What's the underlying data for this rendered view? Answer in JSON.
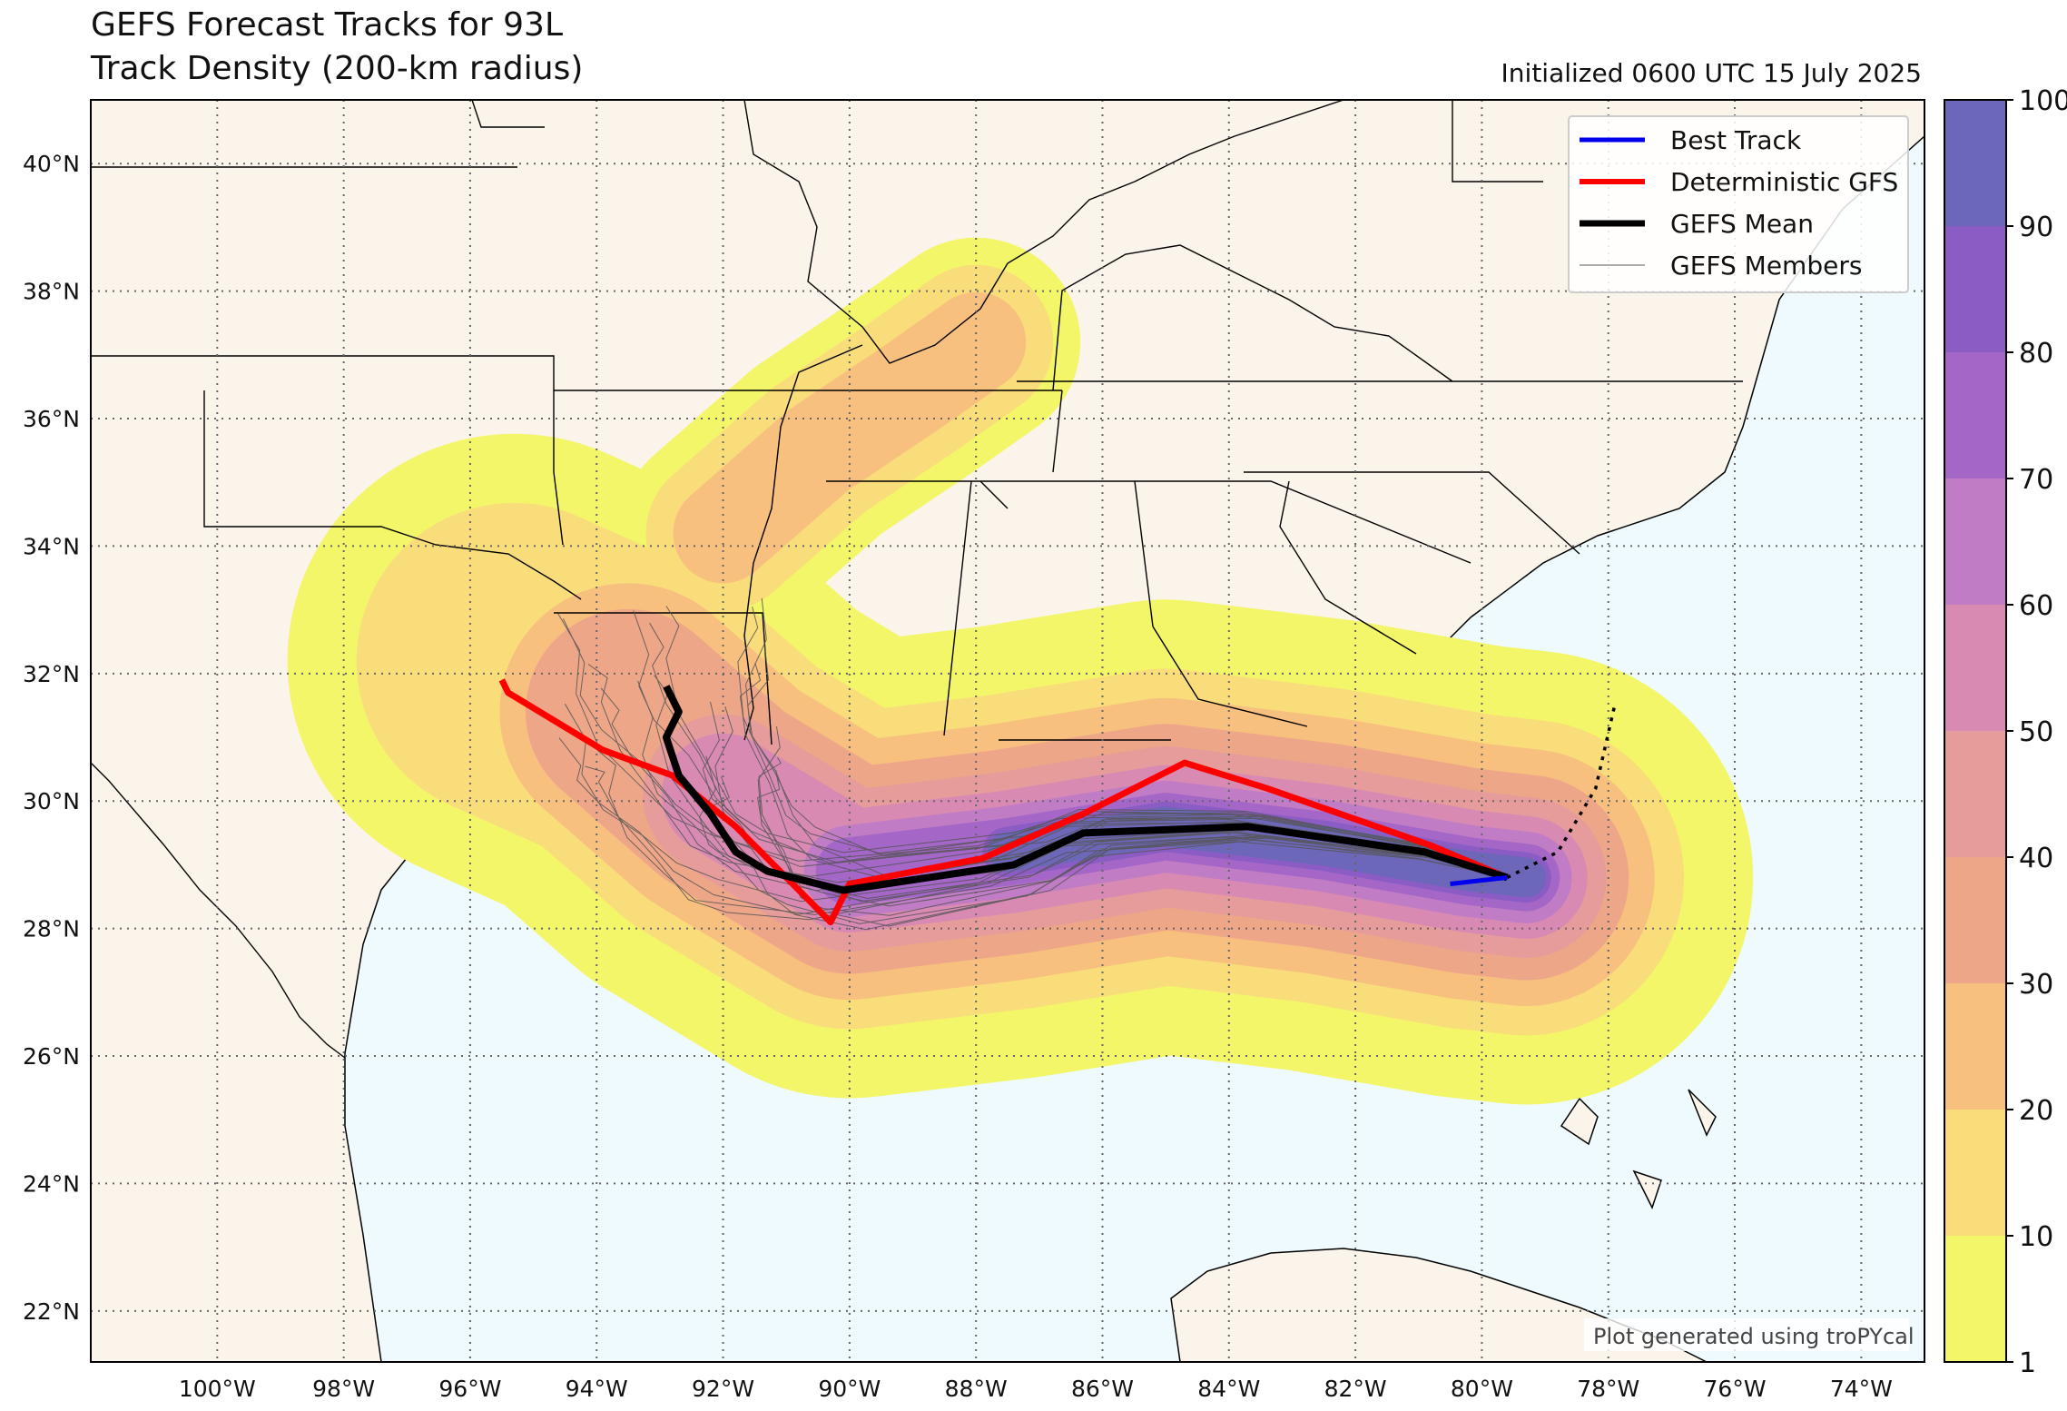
{
  "title_line1": "GEFS Forecast Tracks for 93L",
  "title_line2": "Track Density (200-km radius)",
  "initialized": "Initialized 0600 UTC 15 July 2025",
  "credit": "Plot generated using troPYcal",
  "colors": {
    "land": "#faf4ea",
    "ocean": "#eefafd",
    "best_track": "#0000ee",
    "deterministic_gfs": "#ff0000",
    "gefs_mean": "#000000",
    "gefs_members": "#333333"
  },
  "legend": [
    {
      "label": "Best Track",
      "color": "#0000ee",
      "width": 5
    },
    {
      "label": "Deterministic GFS",
      "color": "#ff0000",
      "width": 6
    },
    {
      "label": "GEFS Mean",
      "color": "#000000",
      "width": 7
    },
    {
      "label": "GEFS Members",
      "color": "#555555",
      "width": 1
    }
  ],
  "colorbar": {
    "levels": [
      1,
      10,
      20,
      30,
      40,
      50,
      60,
      70,
      80,
      90,
      100
    ],
    "colors": [
      "#f3f669",
      "#f9dd7b",
      "#f8c07e",
      "#eea688",
      "#e59c9a",
      "#d88ab3",
      "#c07cc4",
      "#a466c7",
      "#8a5cc4",
      "#6c67b8"
    ]
  },
  "map": {
    "lon_range": [
      -102,
      -73
    ],
    "lat_range": [
      21.2,
      41
    ],
    "lon_ticks": [
      "100°W",
      "98°W",
      "96°W",
      "94°W",
      "92°W",
      "90°W",
      "88°W",
      "86°W",
      "84°W",
      "82°W",
      "80°W",
      "78°W",
      "76°W",
      "74°W"
    ],
    "lat_ticks": [
      "22°N",
      "24°N",
      "26°N",
      "28°N",
      "30°N",
      "32°N",
      "34°N",
      "36°N",
      "38°N",
      "40°N"
    ]
  },
  "tracks": {
    "best_track": [
      [
        -80.5,
        28.7
      ],
      [
        -79.6,
        28.8
      ]
    ],
    "deterministic_gfs": [
      [
        -95.5,
        31.9
      ],
      [
        -95.4,
        31.7
      ],
      [
        -93.9,
        30.8
      ],
      [
        -92.8,
        30.4
      ],
      [
        -91.8,
        29.6
      ],
      [
        -90.3,
        28.1
      ],
      [
        -90.0,
        28.7
      ],
      [
        -87.9,
        29.1
      ],
      [
        -86.3,
        29.8
      ],
      [
        -84.7,
        30.6
      ],
      [
        -83.4,
        30.2
      ],
      [
        -80.8,
        29.3
      ],
      [
        -79.6,
        28.8
      ]
    ],
    "gefs_mean": [
      [
        -92.9,
        31.8
      ],
      [
        -92.7,
        31.4
      ],
      [
        -92.9,
        31.0
      ],
      [
        -92.7,
        30.4
      ],
      [
        -92.2,
        29.8
      ],
      [
        -91.8,
        29.2
      ],
      [
        -91.3,
        28.9
      ],
      [
        -90.1,
        28.6
      ],
      [
        -87.4,
        29.0
      ],
      [
        -86.3,
        29.5
      ],
      [
        -83.7,
        29.6
      ],
      [
        -80.9,
        29.2
      ],
      [
        -79.6,
        28.8
      ]
    ],
    "future_path": [
      [
        -79.6,
        28.8
      ],
      [
        -78.8,
        29.2
      ],
      [
        -78.2,
        30.2
      ],
      [
        -77.9,
        31.5
      ]
    ]
  }
}
